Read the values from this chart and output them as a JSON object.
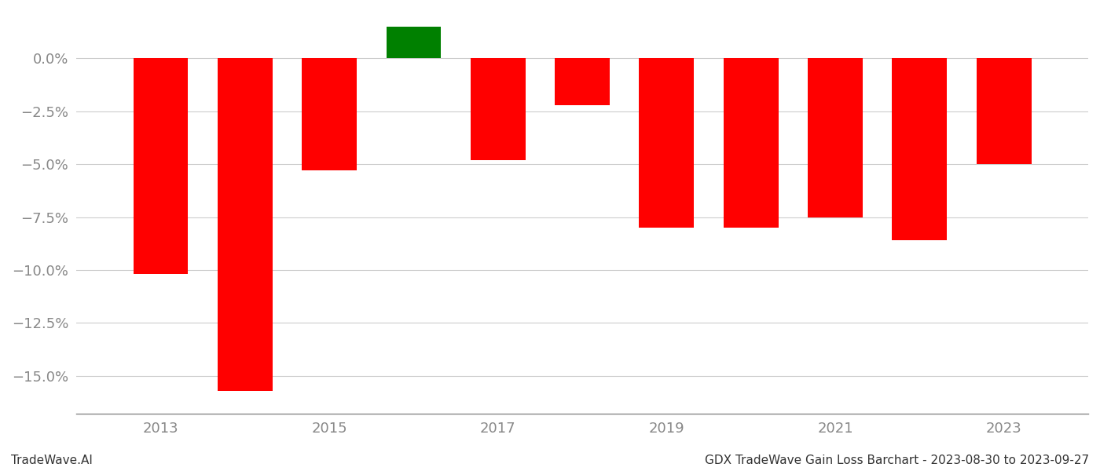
{
  "years": [
    2013,
    2014,
    2015,
    2016,
    2017,
    2018,
    2019,
    2020,
    2021,
    2022,
    2023
  ],
  "values": [
    -0.102,
    -0.157,
    -0.053,
    0.015,
    -0.048,
    -0.022,
    -0.08,
    -0.08,
    -0.075,
    -0.086,
    -0.05
  ],
  "colors": [
    "#ff0000",
    "#ff0000",
    "#ff0000",
    "#008000",
    "#ff0000",
    "#ff0000",
    "#ff0000",
    "#ff0000",
    "#ff0000",
    "#ff0000",
    "#ff0000"
  ],
  "ylim_min": -0.168,
  "ylim_max": 0.022,
  "bar_width": 0.65,
  "background_color": "#ffffff",
  "grid_color": "#cccccc",
  "tick_color": "#888888",
  "footer_left": "TradeWave.AI",
  "footer_right": "GDX TradeWave Gain Loss Barchart - 2023-08-30 to 2023-09-27",
  "footer_fontsize": 11,
  "yticks": [
    0.0,
    -0.025,
    -0.05,
    -0.075,
    -0.1,
    -0.125,
    -0.15
  ],
  "ytick_labels": [
    "0.0%",
    "−2.5%",
    "−5.0%",
    "−7.5%",
    "−10.0%",
    "−12.5%",
    "−15.0%"
  ],
  "xticks": [
    2013,
    2015,
    2017,
    2019,
    2021,
    2023
  ]
}
